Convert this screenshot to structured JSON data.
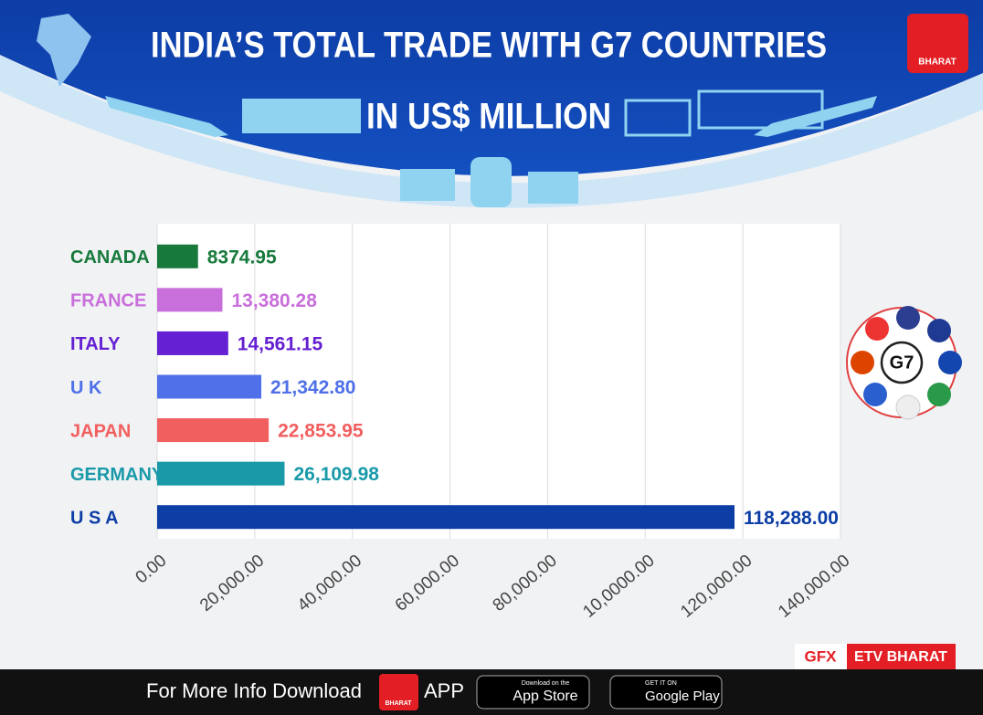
{
  "chart_data": {
    "type": "hbar",
    "title": "INDIA’S TOTAL TRADE WITH G7 COUNTRIES",
    "subtitle": "IN US$ MILLION",
    "categories": [
      "CANADA",
      "FRANCE",
      "ITALY",
      "U K",
      "JAPAN",
      "GERMANY",
      "U S A"
    ],
    "values": [
      8374.95,
      13380.28,
      14561.15,
      21342.8,
      22853.95,
      26109.98,
      118288.0
    ],
    "value_labels": [
      "8374.95",
      "13,380.28",
      "14,561.15",
      "21,342.80",
      "22,853.95",
      "26,109.98",
      "118,288.00"
    ],
    "colors": [
      "#17793b",
      "#c96fdb",
      "#6420d2",
      "#4f70e8",
      "#f25f5f",
      "#1a9aa9",
      "#0c3ea6"
    ],
    "xlim": [
      0,
      140000
    ],
    "xticks": [
      {
        "value": 0,
        "label": "0.00"
      },
      {
        "value": 20000,
        "label": "20,000.00"
      },
      {
        "value": 40000,
        "label": "40,000.00"
      },
      {
        "value": 60000,
        "label": "60,000.00"
      },
      {
        "value": 80000,
        "label": "80,000.00"
      },
      {
        "value": 100000,
        "label": "10,0000.00"
      },
      {
        "value": 120000,
        "label": "120,000.00"
      },
      {
        "value": 140000,
        "label": "140,000.00"
      }
    ],
    "grid": true
  },
  "badge": "G7",
  "logo": "BHARAT",
  "credit": {
    "gfx": "GFX",
    "brand": "ETV BHARAT"
  },
  "footer": {
    "text": "For More Info Download",
    "logo": "BHARAT",
    "app": "APP",
    "apple_small": "Download on the",
    "apple": "App Store",
    "google_small": "GET IT ON",
    "google": "Google Play"
  }
}
